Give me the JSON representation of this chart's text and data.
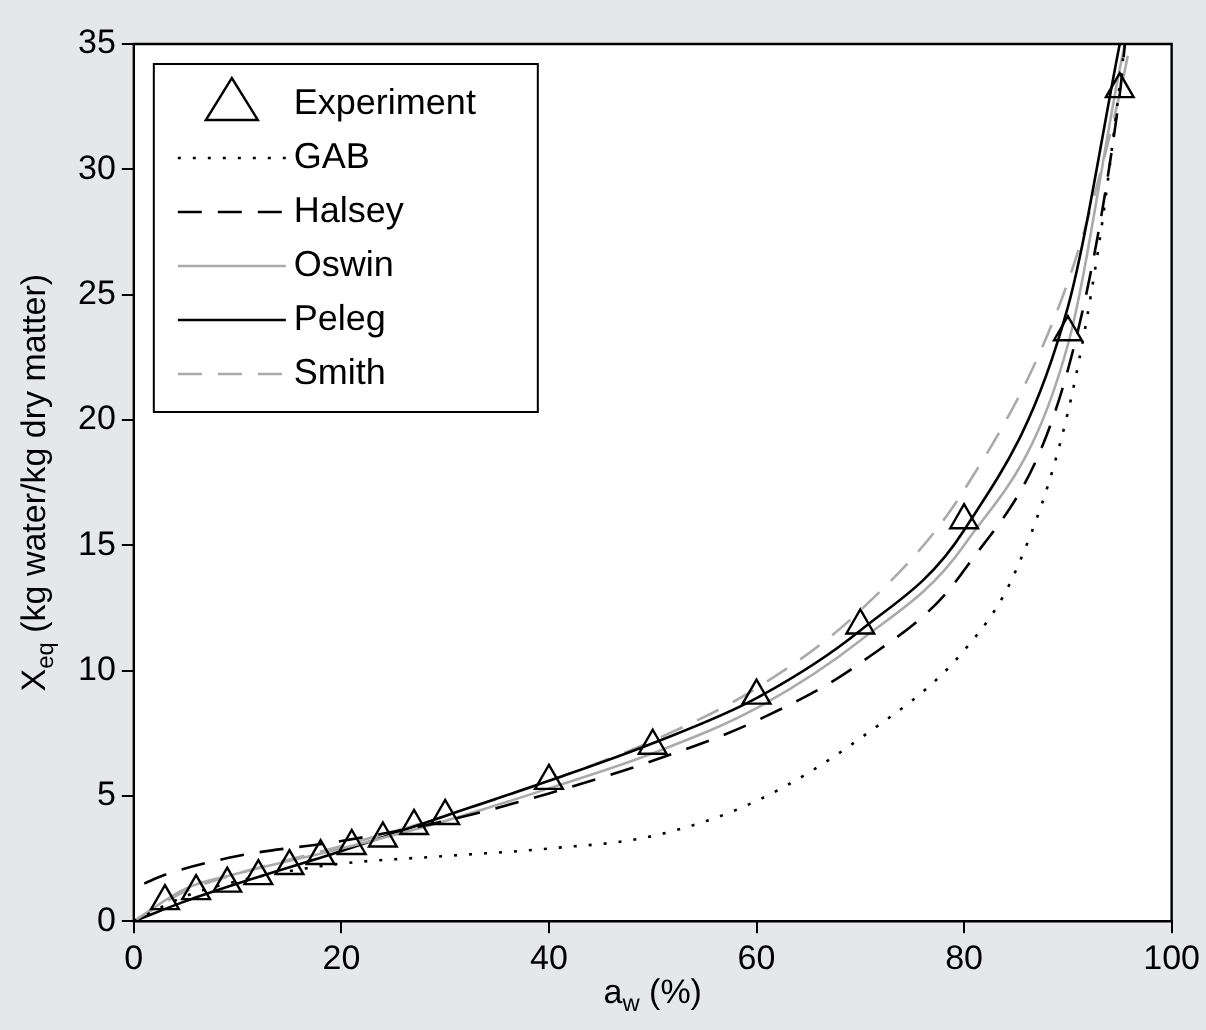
{
  "chart_data": {
    "type": "line",
    "xlabel": "a$_{w}$ (%)",
    "ylabel": "X$_{eq}$ (kg water/kg dry matter)",
    "xlim": [
      0,
      100
    ],
    "xticks": [
      0,
      20,
      40,
      60,
      80,
      100
    ],
    "ylim": [
      0,
      35
    ],
    "yticks": [
      0,
      5,
      10,
      15,
      20,
      25,
      30,
      35
    ],
    "grid": false,
    "legend": "top left",
    "series": [
      {
        "name": "Experiment",
        "type": "scatter",
        "marker": "triangle",
        "color": "#000000",
        "x": [
          3,
          6,
          9,
          12,
          15,
          18,
          21,
          24,
          27,
          30,
          40,
          50,
          60,
          70,
          80,
          90,
          95
        ],
        "values": [
          0.8,
          1.2,
          1.5,
          1.8,
          2.2,
          2.6,
          3.0,
          3.3,
          3.8,
          4.2,
          5.6,
          7.0,
          9.0,
          11.8,
          16.0,
          23.5,
          33.2
        ]
      },
      {
        "name": "GAB",
        "type": "line",
        "line_style": "dotted",
        "color": "#000000",
        "x": [
          0,
          5,
          10,
          15,
          20,
          30,
          40,
          50,
          60,
          70,
          80,
          85,
          90,
          93,
          95.5
        ],
        "values": [
          0,
          1.0,
          1.6,
          2.0,
          2.3,
          2.6,
          2.9,
          3.4,
          4.8,
          7.3,
          10.8,
          14,
          20.3,
          27,
          35
        ]
      },
      {
        "name": "Halsey",
        "type": "line",
        "line_style": "dashed",
        "color": "#000000",
        "x": [
          1,
          3,
          10,
          20,
          30,
          40,
          50,
          60,
          70,
          80,
          90,
          95,
          95.5
        ],
        "values": [
          1.5,
          1.85,
          2.6,
          3.2,
          4.0,
          5.1,
          6.4,
          8.0,
          10.3,
          14.0,
          22,
          33,
          35
        ]
      },
      {
        "name": "Oswin",
        "type": "line",
        "line_style": "solid",
        "color": "#aaaaaa",
        "x": [
          0,
          5,
          10,
          20,
          30,
          40,
          50,
          60,
          70,
          80,
          90,
          95,
          95.5
        ],
        "values": [
          0,
          1.3,
          1.9,
          2.9,
          4.0,
          5.3,
          6.7,
          8.5,
          11.2,
          15.0,
          23,
          34,
          35
        ]
      },
      {
        "name": "Peleg",
        "type": "line",
        "line_style": "solid",
        "color": "#000000",
        "x": [
          0,
          5,
          10,
          20,
          30,
          40,
          50,
          60,
          70,
          80,
          90,
          95
        ],
        "values": [
          0,
          0.8,
          1.5,
          2.8,
          4.2,
          5.6,
          7.1,
          8.9,
          11.6,
          15.6,
          24.5,
          35
        ]
      },
      {
        "name": "Smith",
        "type": "line",
        "line_style": "dashed",
        "color": "#aaaaaa",
        "x": [
          0,
          5,
          10,
          20,
          30,
          40,
          50,
          60,
          70,
          80,
          90,
          95,
          96
        ],
        "values": [
          0,
          1.2,
          1.9,
          3.0,
          4.2,
          5.6,
          7.2,
          9.3,
          12.4,
          17.2,
          25.5,
          33,
          35
        ]
      }
    ]
  }
}
